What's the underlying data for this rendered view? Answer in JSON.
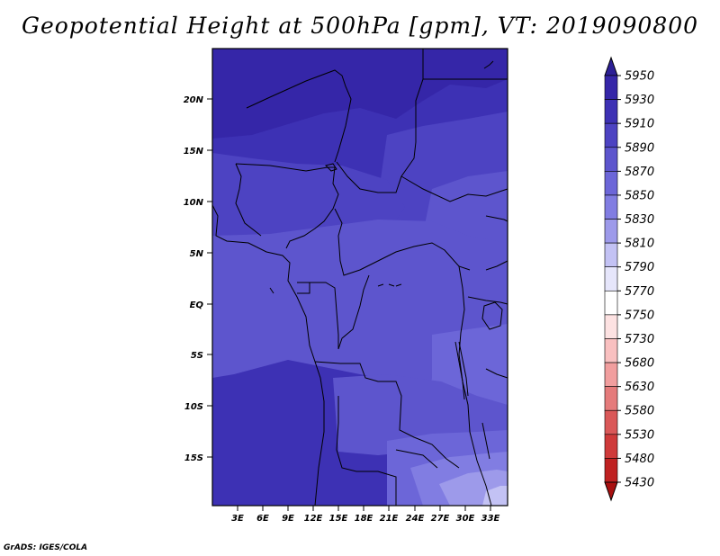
{
  "title": "Geopotential Height at 500hPa [gpm], VT: 2019090800",
  "credit": "GrADS: IGES/COLA",
  "map": {
    "lat_ticks": [
      "20N",
      "15N",
      "10N",
      "5N",
      "EQ",
      "5S",
      "10S",
      "15S"
    ],
    "lon_ticks": [
      "3E",
      "6E",
      "9E",
      "12E",
      "15E",
      "18E",
      "21E",
      "24E",
      "27E",
      "30E",
      "33E"
    ]
  },
  "colorbar": {
    "labels": [
      "5950",
      "5930",
      "5910",
      "5890",
      "5870",
      "5850",
      "5830",
      "5810",
      "5790",
      "5770",
      "5750",
      "5730",
      "5680",
      "5630",
      "5580",
      "5530",
      "5480",
      "5430"
    ],
    "colors": [
      "#2c1f96",
      "#3526a8",
      "#3d31b4",
      "#4d43c2",
      "#5d55cd",
      "#6c66d8",
      "#817de2",
      "#9d9aea",
      "#c3c2f4",
      "#e6e6fb",
      "#ffffff",
      "#fde2e2",
      "#f9c0c0",
      "#f19e9e",
      "#e57b7b",
      "#da5858",
      "#cf3a3a",
      "#bf2121",
      "#a81010"
    ],
    "colors_note": ""
  },
  "field": {
    "colors": {
      "c5930": "#3526a8",
      "c5910": "#3d31b4",
      "c5890": "#4d43c2",
      "c5870": "#5d55cd",
      "c5850": "#6c66d8",
      "c5830": "#817de2",
      "c5810": "#9d9aea",
      "c5790": "#c3c2f4",
      "c5770": "#e6e6fb"
    }
  }
}
